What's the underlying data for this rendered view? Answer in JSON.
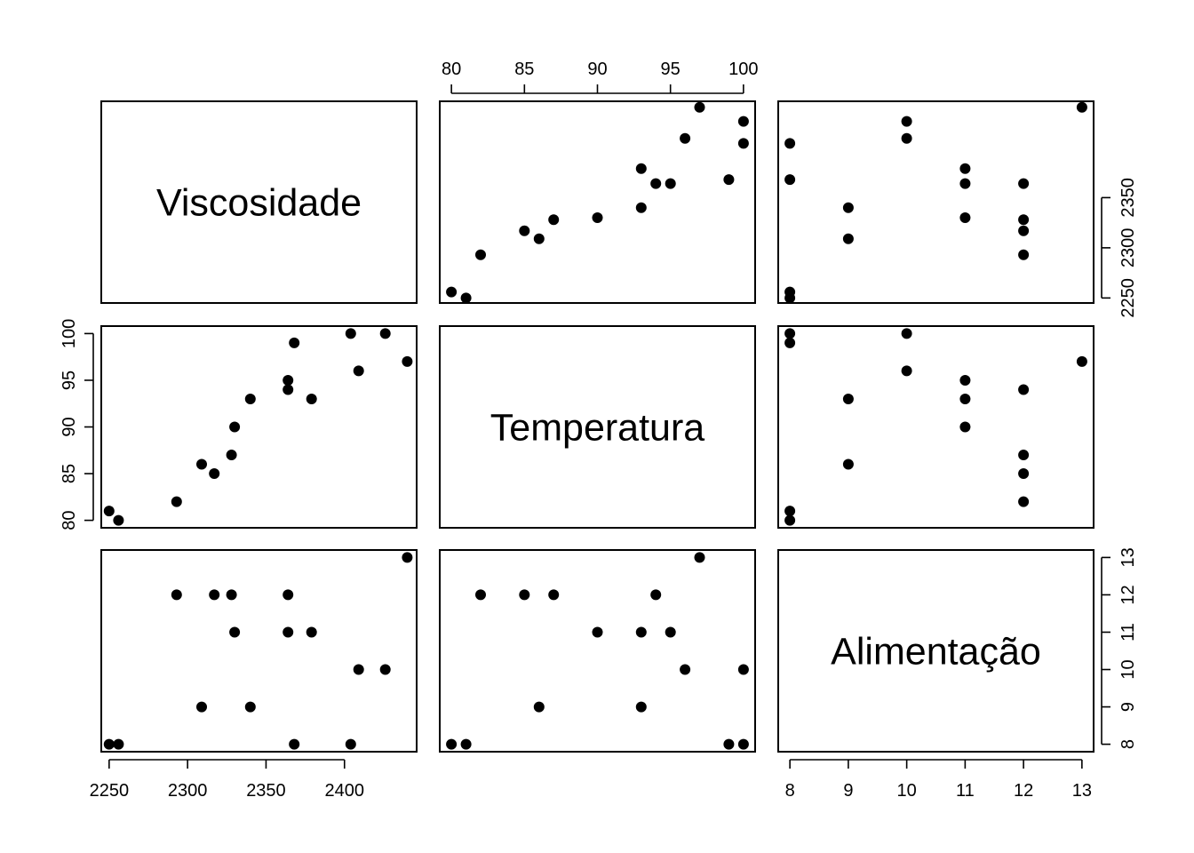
{
  "chart_data": {
    "type": "scatter",
    "variables": [
      "Viscosidade",
      "Temperatura",
      "Alimentação"
    ],
    "axes": [
      {
        "name": "Viscosidade",
        "range": [
          2245,
          2446
        ],
        "ticks": [
          2250,
          2300,
          2350,
          2400
        ],
        "tick_labels": [
          "2250",
          "2300",
          "2350",
          "2400"
        ],
        "x_labels_at": "bottom",
        "y_ticks": [
          2250,
          2300,
          2350
        ],
        "y_tick_labels": [
          "2250",
          "2300",
          "2350"
        ],
        "y_labels_at": "right"
      },
      {
        "name": "Temperatura",
        "range": [
          79.2,
          100.8
        ],
        "ticks": [
          80,
          85,
          90,
          95,
          100
        ],
        "tick_labels": [
          "80",
          "85",
          "90",
          "95",
          "100"
        ],
        "x_labels_at": "top",
        "y_ticks": [
          80,
          85,
          90,
          95,
          100
        ],
        "y_tick_labels": [
          "80",
          "85",
          "90",
          "95",
          "100"
        ],
        "y_labels_at": "left"
      },
      {
        "name": "Alimentação",
        "range": [
          7.8,
          13.2
        ],
        "ticks": [
          8,
          9,
          10,
          11,
          12,
          13
        ],
        "tick_labels": [
          "8",
          "9",
          "10",
          "11",
          "12",
          "13"
        ],
        "x_labels_at": "bottom",
        "y_ticks": [
          8,
          9,
          10,
          11,
          12,
          13
        ],
        "y_tick_labels": [
          "8",
          "9",
          "10",
          "11",
          "12",
          "13"
        ],
        "y_labels_at": "right"
      }
    ],
    "observations": [
      {
        "Viscosidade": 2256,
        "Temperatura": 80,
        "Alimentação": 8
      },
      {
        "Viscosidade": 2250,
        "Temperatura": 81,
        "Alimentação": 8
      },
      {
        "Viscosidade": 2293,
        "Temperatura": 82,
        "Alimentação": 12
      },
      {
        "Viscosidade": 2317,
        "Temperatura": 85,
        "Alimentação": 12
      },
      {
        "Viscosidade": 2309,
        "Temperatura": 86,
        "Alimentação": 9
      },
      {
        "Viscosidade": 2328,
        "Temperatura": 87,
        "Alimentação": 12
      },
      {
        "Viscosidade": 2330,
        "Temperatura": 90,
        "Alimentação": 11
      },
      {
        "Viscosidade": 2340,
        "Temperatura": 93,
        "Alimentação": 9
      },
      {
        "Viscosidade": 2379,
        "Temperatura": 93,
        "Alimentação": 11
      },
      {
        "Viscosidade": 2364,
        "Temperatura": 94,
        "Alimentação": 12
      },
      {
        "Viscosidade": 2364,
        "Temperatura": 95,
        "Alimentação": 11
      },
      {
        "Viscosidade": 2409,
        "Temperatura": 96,
        "Alimentação": 10
      },
      {
        "Viscosidade": 2440,
        "Temperatura": 97,
        "Alimentação": 13
      },
      {
        "Viscosidade": 2368,
        "Temperatura": 99,
        "Alimentação": 8
      },
      {
        "Viscosidade": 2404,
        "Temperatura": 100,
        "Alimentação": 8
      },
      {
        "Viscosidade": 2426,
        "Temperatura": 100,
        "Alimentação": 10
      }
    ]
  }
}
